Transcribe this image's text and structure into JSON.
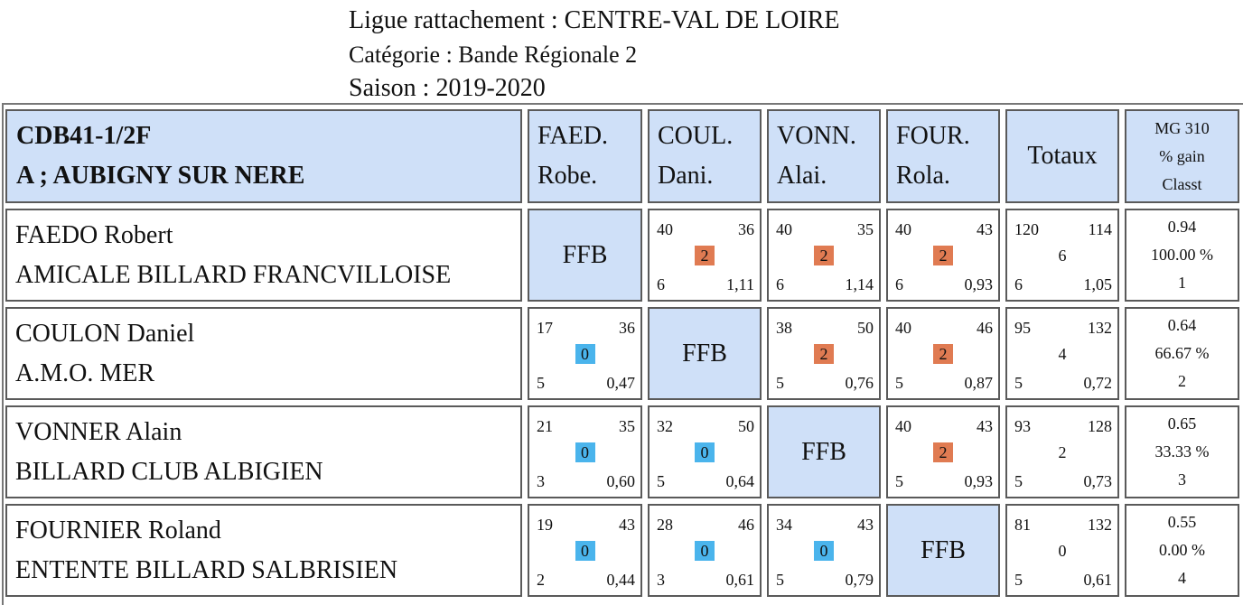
{
  "header": {
    "line1": "Ligue rattachement : CENTRE-VAL DE LOIRE",
    "line2": "Catégorie : Bande Régionale 2",
    "line3": "Saison : 2019-2020"
  },
  "table": {
    "team_code": "CDB41-1/2F",
    "team_name": "A ; AUBIGNY SUR NERE",
    "columns": [
      {
        "top": "FAED.",
        "bottom": "Robe."
      },
      {
        "top": "COUL.",
        "bottom": "Dani."
      },
      {
        "top": "VONN.",
        "bottom": "Alai."
      },
      {
        "top": "FOUR.",
        "bottom": "Rola."
      }
    ],
    "totals_label": "Totaux",
    "mg_header": [
      "MG 310",
      "% gain",
      "Classt"
    ],
    "ffb_label": "FFB",
    "rows": [
      {
        "name": "FAEDO Robert",
        "club": "AMICALE BILLARD FRANCVILLOISE",
        "cells": [
          null,
          {
            "tl": "40",
            "tr": "36",
            "mid": "2",
            "bl": "6",
            "br": "1,11"
          },
          {
            "tl": "40",
            "tr": "35",
            "mid": "2",
            "bl": "6",
            "br": "1,14"
          },
          {
            "tl": "40",
            "tr": "43",
            "mid": "2",
            "bl": "6",
            "br": "0,93"
          }
        ],
        "totals": {
          "tl": "120",
          "tr": "114",
          "mid": "6",
          "bl": "6",
          "br": "1,05"
        },
        "result": [
          "0.94",
          "100.00 %",
          "1"
        ]
      },
      {
        "name": "COULON Daniel",
        "club": "A.M.O. MER",
        "cells": [
          {
            "tl": "17",
            "tr": "36",
            "mid": "0",
            "bl": "5",
            "br": "0,47"
          },
          null,
          {
            "tl": "38",
            "tr": "50",
            "mid": "2",
            "bl": "5",
            "br": "0,76"
          },
          {
            "tl": "40",
            "tr": "46",
            "mid": "2",
            "bl": "5",
            "br": "0,87"
          }
        ],
        "totals": {
          "tl": "95",
          "tr": "132",
          "mid": "4",
          "bl": "5",
          "br": "0,72"
        },
        "result": [
          "0.64",
          "66.67 %",
          "2"
        ]
      },
      {
        "name": "VONNER Alain",
        "club": "BILLARD CLUB ALBIGIEN",
        "cells": [
          {
            "tl": "21",
            "tr": "35",
            "mid": "0",
            "bl": "3",
            "br": "0,60"
          },
          {
            "tl": "32",
            "tr": "50",
            "mid": "0",
            "bl": "5",
            "br": "0,64"
          },
          null,
          {
            "tl": "40",
            "tr": "43",
            "mid": "2",
            "bl": "5",
            "br": "0,93"
          }
        ],
        "totals": {
          "tl": "93",
          "tr": "128",
          "mid": "2",
          "bl": "5",
          "br": "0,73"
        },
        "result": [
          "0.65",
          "33.33 %",
          "3"
        ]
      },
      {
        "name": "FOURNIER Roland",
        "club": "ENTENTE BILLARD SALBRISIEN",
        "cells": [
          {
            "tl": "19",
            "tr": "43",
            "mid": "0",
            "bl": "2",
            "br": "0,44"
          },
          {
            "tl": "28",
            "tr": "46",
            "mid": "0",
            "bl": "3",
            "br": "0,61"
          },
          {
            "tl": "34",
            "tr": "43",
            "mid": "0",
            "bl": "5",
            "br": "0,79"
          },
          null
        ],
        "totals": {
          "tl": "81",
          "tr": "132",
          "mid": "0",
          "bl": "5",
          "br": "0,61"
        },
        "result": [
          "0.55",
          "0.00 %",
          "4"
        ]
      }
    ]
  },
  "colors": {
    "header_fill": "#cfe0f8",
    "win_badge": "#e07b52",
    "loss_badge": "#4ab4ec",
    "border": "#5a5a5a"
  }
}
